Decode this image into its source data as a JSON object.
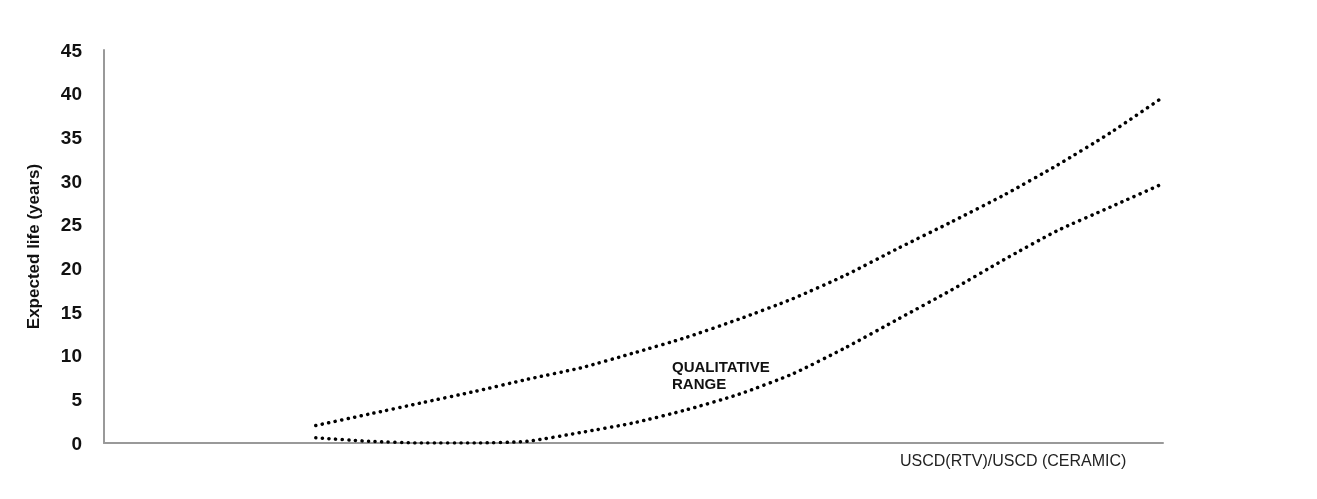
{
  "chart_data": {
    "type": "line",
    "xlabel": "USCD(RTV)/USCD (CERAMIC)",
    "ylabel": "Expected life (years)",
    "annotations": [
      "QUALITATIVE RANGE"
    ],
    "categories": [
      null,
      null,
      null,
      null,
      null,
      null,
      null,
      null,
      null,
      null,
      null,
      null,
      null,
      null,
      null,
      null,
      null,
      null,
      null,
      null,
      null
    ],
    "series": [
      {
        "color": "#000000",
        "values": [
          null,
          null,
          null,
          null,
          2,
          3.3,
          4.6,
          5.9,
          7.3,
          8.6,
          10.3,
          12.1,
          14.2,
          16.5,
          19.2,
          22.3,
          25.3,
          28.4,
          31.8,
          35.5,
          39.6
        ]
      },
      {
        "color": "#000000",
        "values": [
          null,
          null,
          null,
          null,
          0.6,
          0.2,
          0,
          0,
          0.2,
          1.2,
          2.3,
          3.8,
          5.6,
          7.9,
          10.9,
          14.2,
          17.5,
          21,
          24.3,
          27,
          29.7
        ]
      }
    ],
    "ylim": [
      0,
      45
    ],
    "yticks": [
      0,
      5,
      10,
      15,
      20,
      25,
      30,
      35,
      40,
      45
    ],
    "grid": false,
    "tick_labels": "y",
    "marker": "none",
    "line_style": "dotted"
  }
}
